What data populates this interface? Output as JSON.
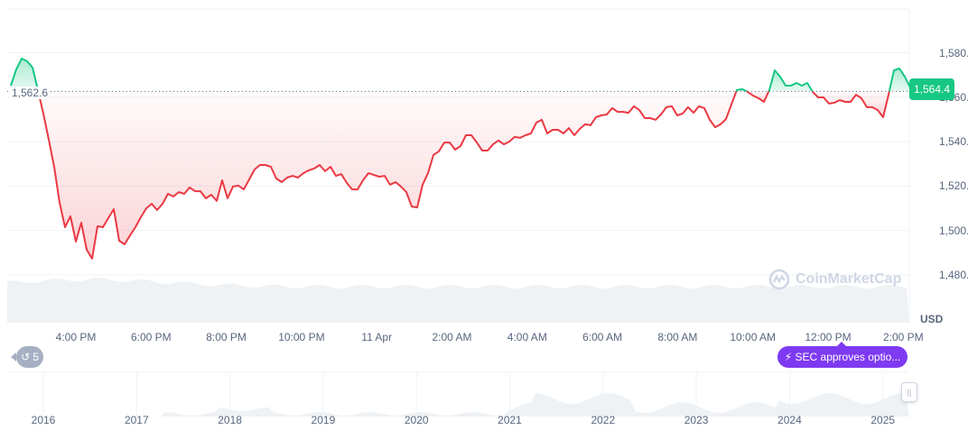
{
  "chart_data": {
    "type": "line",
    "currency": "USD",
    "start_time": "14:16",
    "interval_minutes": 8.64,
    "reference_price": 1562.6,
    "reference_label": "1,562.6",
    "current_price": 1564.4,
    "current_label": "1,564.4",
    "ylim": [
      1470,
      1590
    ],
    "y_ticks": [
      "1,580.0",
      "1,560.0",
      "1,540.0",
      "1,520.0",
      "1,500.0",
      "1,480.0"
    ],
    "y_tick_values": [
      1580,
      1560,
      1540,
      1520,
      1500,
      1480
    ],
    "x_ticks": [
      "4:00 PM",
      "6:00 PM",
      "8:00 PM",
      "10:00 PM",
      "11 Apr",
      "2:00 AM",
      "4:00 AM",
      "6:00 AM",
      "8:00 AM",
      "10:00 AM",
      "12:00 PM",
      "2:00 PM"
    ],
    "ylabel": "USD",
    "grid": true,
    "colors": {
      "up": "#16c784",
      "down": "#ea3943",
      "news": "#7e3af2",
      "history": "#a6b0c3"
    },
    "values": [
      1565.2,
      1572.5,
      1577.4,
      1576.2,
      1573.3,
      1563.2,
      1552.6,
      1540.9,
      1528.7,
      1512.5,
      1501.5,
      1506.4,
      1495.0,
      1503.5,
      1491.4,
      1487.3,
      1501.9,
      1501.5,
      1505.6,
      1509.6,
      1495.4,
      1493.8,
      1497.8,
      1501.5,
      1506.0,
      1510.0,
      1512.0,
      1509.2,
      1512.0,
      1516.5,
      1515.3,
      1517.3,
      1516.5,
      1519.4,
      1517.7,
      1517.7,
      1514.5,
      1516.1,
      1513.3,
      1522.6,
      1514.5,
      1519.8,
      1520.2,
      1518.5,
      1523.0,
      1527.5,
      1529.5,
      1529.5,
      1528.7,
      1523.4,
      1521.8,
      1523.8,
      1524.6,
      1523.8,
      1525.8,
      1527.1,
      1527.9,
      1529.5,
      1526.7,
      1528.7,
      1524.6,
      1525.4,
      1521.4,
      1518.5,
      1518.5,
      1522.6,
      1525.8,
      1525.0,
      1524.2,
      1524.6,
      1520.6,
      1521.8,
      1519.8,
      1517.3,
      1510.8,
      1510.4,
      1520.6,
      1525.8,
      1534.0,
      1535.6,
      1539.6,
      1539.6,
      1536.4,
      1538.0,
      1542.9,
      1542.9,
      1539.6,
      1536.0,
      1536.0,
      1538.8,
      1540.5,
      1538.8,
      1540.0,
      1542.1,
      1541.7,
      1542.9,
      1543.7,
      1548.6,
      1549.8,
      1543.7,
      1545.3,
      1545.3,
      1543.7,
      1546.1,
      1542.9,
      1545.7,
      1547.8,
      1547.4,
      1551.0,
      1551.8,
      1552.2,
      1555.1,
      1553.4,
      1553.4,
      1553.0,
      1555.9,
      1554.2,
      1550.6,
      1550.6,
      1549.8,
      1552.2,
      1555.5,
      1555.9,
      1551.8,
      1552.6,
      1555.5,
      1553.0,
      1555.9,
      1555.1,
      1549.8,
      1546.5,
      1547.8,
      1550.2,
      1556.7,
      1563.2,
      1563.6,
      1562.4,
      1560.7,
      1559.5,
      1557.9,
      1563.2,
      1572.1,
      1569.2,
      1565.2,
      1565.2,
      1566.4,
      1565.2,
      1566.4,
      1562.4,
      1559.9,
      1559.9,
      1557.1,
      1557.5,
      1558.7,
      1557.9,
      1557.9,
      1561.1,
      1559.5,
      1555.5,
      1555.5,
      1554.2,
      1551.0,
      1561.1,
      1572.1,
      1572.9,
      1569.2,
      1564.4
    ]
  },
  "navigator": {
    "years": [
      "2016",
      "2017",
      "2018",
      "2019",
      "2020",
      "2021",
      "2022",
      "2023",
      "2024",
      "2025"
    ]
  },
  "history_badge": {
    "icon": "history-icon",
    "count": "5"
  },
  "news_badge": {
    "icon": "lightning-icon",
    "text": "SEC approves optio..."
  },
  "watermark": "CoinMarketCap"
}
